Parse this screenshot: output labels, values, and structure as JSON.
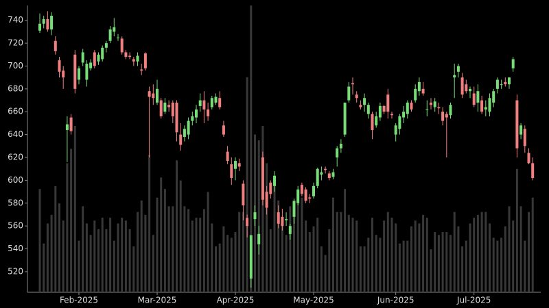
{
  "chart_data": {
    "type": "candlestick",
    "categories": [
      null,
      null,
      null,
      null,
      null,
      null,
      null,
      null,
      null,
      null,
      "Feb-2025",
      null,
      null,
      null,
      null,
      null,
      null,
      null,
      null,
      null,
      null,
      null,
      null,
      null,
      null,
      null,
      null,
      null,
      null,
      null,
      "Mar-2025",
      null,
      null,
      null,
      null,
      null,
      null,
      null,
      null,
      null,
      null,
      null,
      null,
      null,
      null,
      null,
      null,
      null,
      null,
      null,
      "Apr-2025",
      null,
      null,
      null,
      null,
      null,
      null,
      null,
      null,
      null,
      null,
      null,
      null,
      null,
      null,
      null,
      null,
      null,
      null,
      null,
      "May-2025",
      null,
      null,
      null,
      null,
      null,
      null,
      null,
      null,
      null,
      null,
      null,
      null,
      null,
      null,
      null,
      null,
      null,
      null,
      null,
      null,
      "Jun-2025",
      null,
      null,
      null,
      null,
      null,
      null,
      null,
      null,
      null,
      null,
      null,
      null,
      null,
      null,
      null,
      null,
      null,
      null,
      null,
      "Jul-2025",
      null,
      null,
      null,
      null,
      null,
      null,
      null,
      null,
      null,
      null,
      null,
      null,
      null,
      null,
      null
    ],
    "open": [
      731,
      737,
      741,
      732,
      722,
      705,
      696,
      644,
      655,
      710,
      688,
      703,
      688,
      698,
      712,
      704,
      706,
      716,
      722,
      730,
      725,
      724,
      712,
      709,
      706,
      704,
      697,
      711,
      678,
      676,
      668,
      670,
      660,
      666,
      668,
      668,
      640,
      638,
      640,
      652,
      655,
      665,
      670,
      662,
      664,
      668,
      672,
      648,
      625,
      614,
      610,
      615,
      597,
      567,
      514,
      566,
      544,
      620,
      590,
      598,
      595,
      572,
      568,
      565,
      553,
      568,
      580,
      596,
      592,
      585,
      586,
      595,
      605,
      610,
      606,
      603,
      620,
      628,
      640,
      670,
      685,
      675,
      666,
      666,
      658,
      658,
      648,
      655,
      665,
      675,
      658,
      640,
      645,
      655,
      658,
      668,
      670,
      678,
      680,
      662,
      668,
      664,
      664,
      660,
      658,
      657,
      690,
      695,
      690,
      684,
      678,
      676,
      668,
      670,
      662,
      660,
      668,
      680,
      684,
      686,
      684,
      698,
      670,
      640,
      645,
      624,
      615
    ],
    "high": [
      746,
      744,
      748,
      747,
      726,
      708,
      700,
      656,
      658,
      714,
      700,
      715,
      705,
      706,
      714,
      712,
      718,
      722,
      735,
      742,
      728,
      726,
      714,
      712,
      708,
      712,
      702,
      712,
      682,
      684,
      688,
      672,
      672,
      670,
      670,
      670,
      650,
      648,
      655,
      660,
      666,
      676,
      678,
      668,
      674,
      676,
      678,
      652,
      630,
      620,
      620,
      619,
      600,
      570,
      552,
      578,
      560,
      625,
      595,
      600,
      608,
      578,
      575,
      572,
      562,
      584,
      595,
      598,
      594,
      588,
      598,
      611,
      612,
      612,
      608,
      610,
      630,
      636,
      668,
      686,
      690,
      678,
      670,
      676,
      668,
      660,
      660,
      668,
      666,
      680,
      660,
      650,
      658,
      665,
      670,
      670,
      684,
      690,
      686,
      670,
      672,
      672,
      668,
      664,
      660,
      668,
      702,
      702,
      694,
      688,
      682,
      682,
      684,
      674,
      670,
      676,
      680,
      690,
      688,
      690,
      690,
      708,
      675,
      650,
      648,
      628,
      620
    ],
    "low": [
      729,
      733,
      730,
      727,
      710,
      690,
      680,
      616,
      640,
      676,
      684,
      700,
      682,
      696,
      698,
      701,
      704,
      712,
      720,
      726,
      722,
      710,
      706,
      706,
      700,
      700,
      692,
      696,
      620,
      666,
      666,
      654,
      658,
      660,
      650,
      634,
      626,
      634,
      636,
      648,
      650,
      660,
      650,
      652,
      662,
      666,
      662,
      638,
      614,
      596,
      600,
      608,
      565,
      550,
      506,
      560,
      535,
      578,
      570,
      584,
      590,
      558,
      556,
      560,
      548,
      562,
      578,
      586,
      580,
      580,
      584,
      593,
      600,
      606,
      600,
      601,
      612,
      624,
      638,
      668,
      675,
      668,
      662,
      660,
      654,
      636,
      646,
      652,
      658,
      654,
      654,
      634,
      640,
      650,
      654,
      660,
      668,
      674,
      674,
      656,
      662,
      660,
      658,
      648,
      620,
      654,
      672,
      690,
      672,
      676,
      672,
      664,
      660,
      658,
      656,
      656,
      664,
      676,
      680,
      682,
      680,
      695,
      620,
      636,
      624,
      614,
      600
    ],
    "close": [
      737,
      741,
      732,
      744,
      713,
      695,
      690,
      649,
      643,
      680,
      698,
      712,
      702,
      703,
      700,
      710,
      716,
      720,
      732,
      734,
      725,
      712,
      708,
      708,
      704,
      709,
      696,
      698,
      673,
      672,
      680,
      656,
      668,
      664,
      656,
      642,
      631,
      645,
      652,
      656,
      662,
      670,
      662,
      656,
      672,
      673,
      664,
      640,
      617,
      602,
      617,
      612,
      578,
      560,
      552,
      572,
      553,
      583,
      576,
      588,
      604,
      562,
      560,
      566,
      560,
      582,
      592,
      588,
      582,
      584,
      595,
      610,
      607,
      609,
      602,
      607,
      628,
      632,
      668,
      682,
      684,
      672,
      664,
      672,
      666,
      644,
      656,
      665,
      660,
      660,
      657,
      648,
      656,
      660,
      668,
      662,
      680,
      686,
      676,
      662,
      666,
      669,
      663,
      652,
      655,
      666,
      692,
      700,
      675,
      678,
      680,
      666,
      678,
      660,
      664,
      672,
      678,
      688,
      684,
      684,
      690,
      706,
      628,
      648,
      630,
      615,
      602
    ],
    "volume": [
      36,
      17,
      24,
      27,
      37,
      31,
      25,
      45,
      50,
      58,
      18,
      30,
      24,
      20,
      25,
      22,
      26,
      22,
      26,
      18,
      24,
      26,
      25,
      22,
      16,
      28,
      32,
      27,
      48,
      20,
      33,
      40,
      36,
      30,
      30,
      46,
      39,
      30,
      29,
      25,
      26,
      26,
      29,
      35,
      24,
      16,
      17,
      23,
      20,
      19,
      21,
      28,
      28,
      75,
      100,
      55,
      53,
      58,
      45,
      22,
      38,
      32,
      26,
      20,
      30,
      28,
      31,
      33,
      25,
      21,
      23,
      26,
      16,
      13,
      22,
      33,
      28,
      28,
      36,
      27,
      26,
      25,
      16,
      16,
      19,
      26,
      20,
      19,
      25,
      28,
      26,
      24,
      17,
      18,
      18,
      23,
      25,
      24,
      27,
      26,
      15,
      21,
      20,
      21,
      21,
      20,
      28,
      23,
      16,
      18,
      24,
      26,
      27,
      28,
      28,
      24,
      19,
      18,
      19,
      23,
      30,
      25,
      43,
      30,
      18,
      28,
      33
    ],
    "ylim": [
      502,
      753
    ],
    "yticks": [
      520,
      540,
      560,
      580,
      600,
      620,
      640,
      660,
      680,
      700,
      720,
      740
    ],
    "y2lim": [
      0,
      100
    ],
    "up_color": "#77dd77",
    "down_color": "#f08080",
    "volume_color": "#383838"
  }
}
